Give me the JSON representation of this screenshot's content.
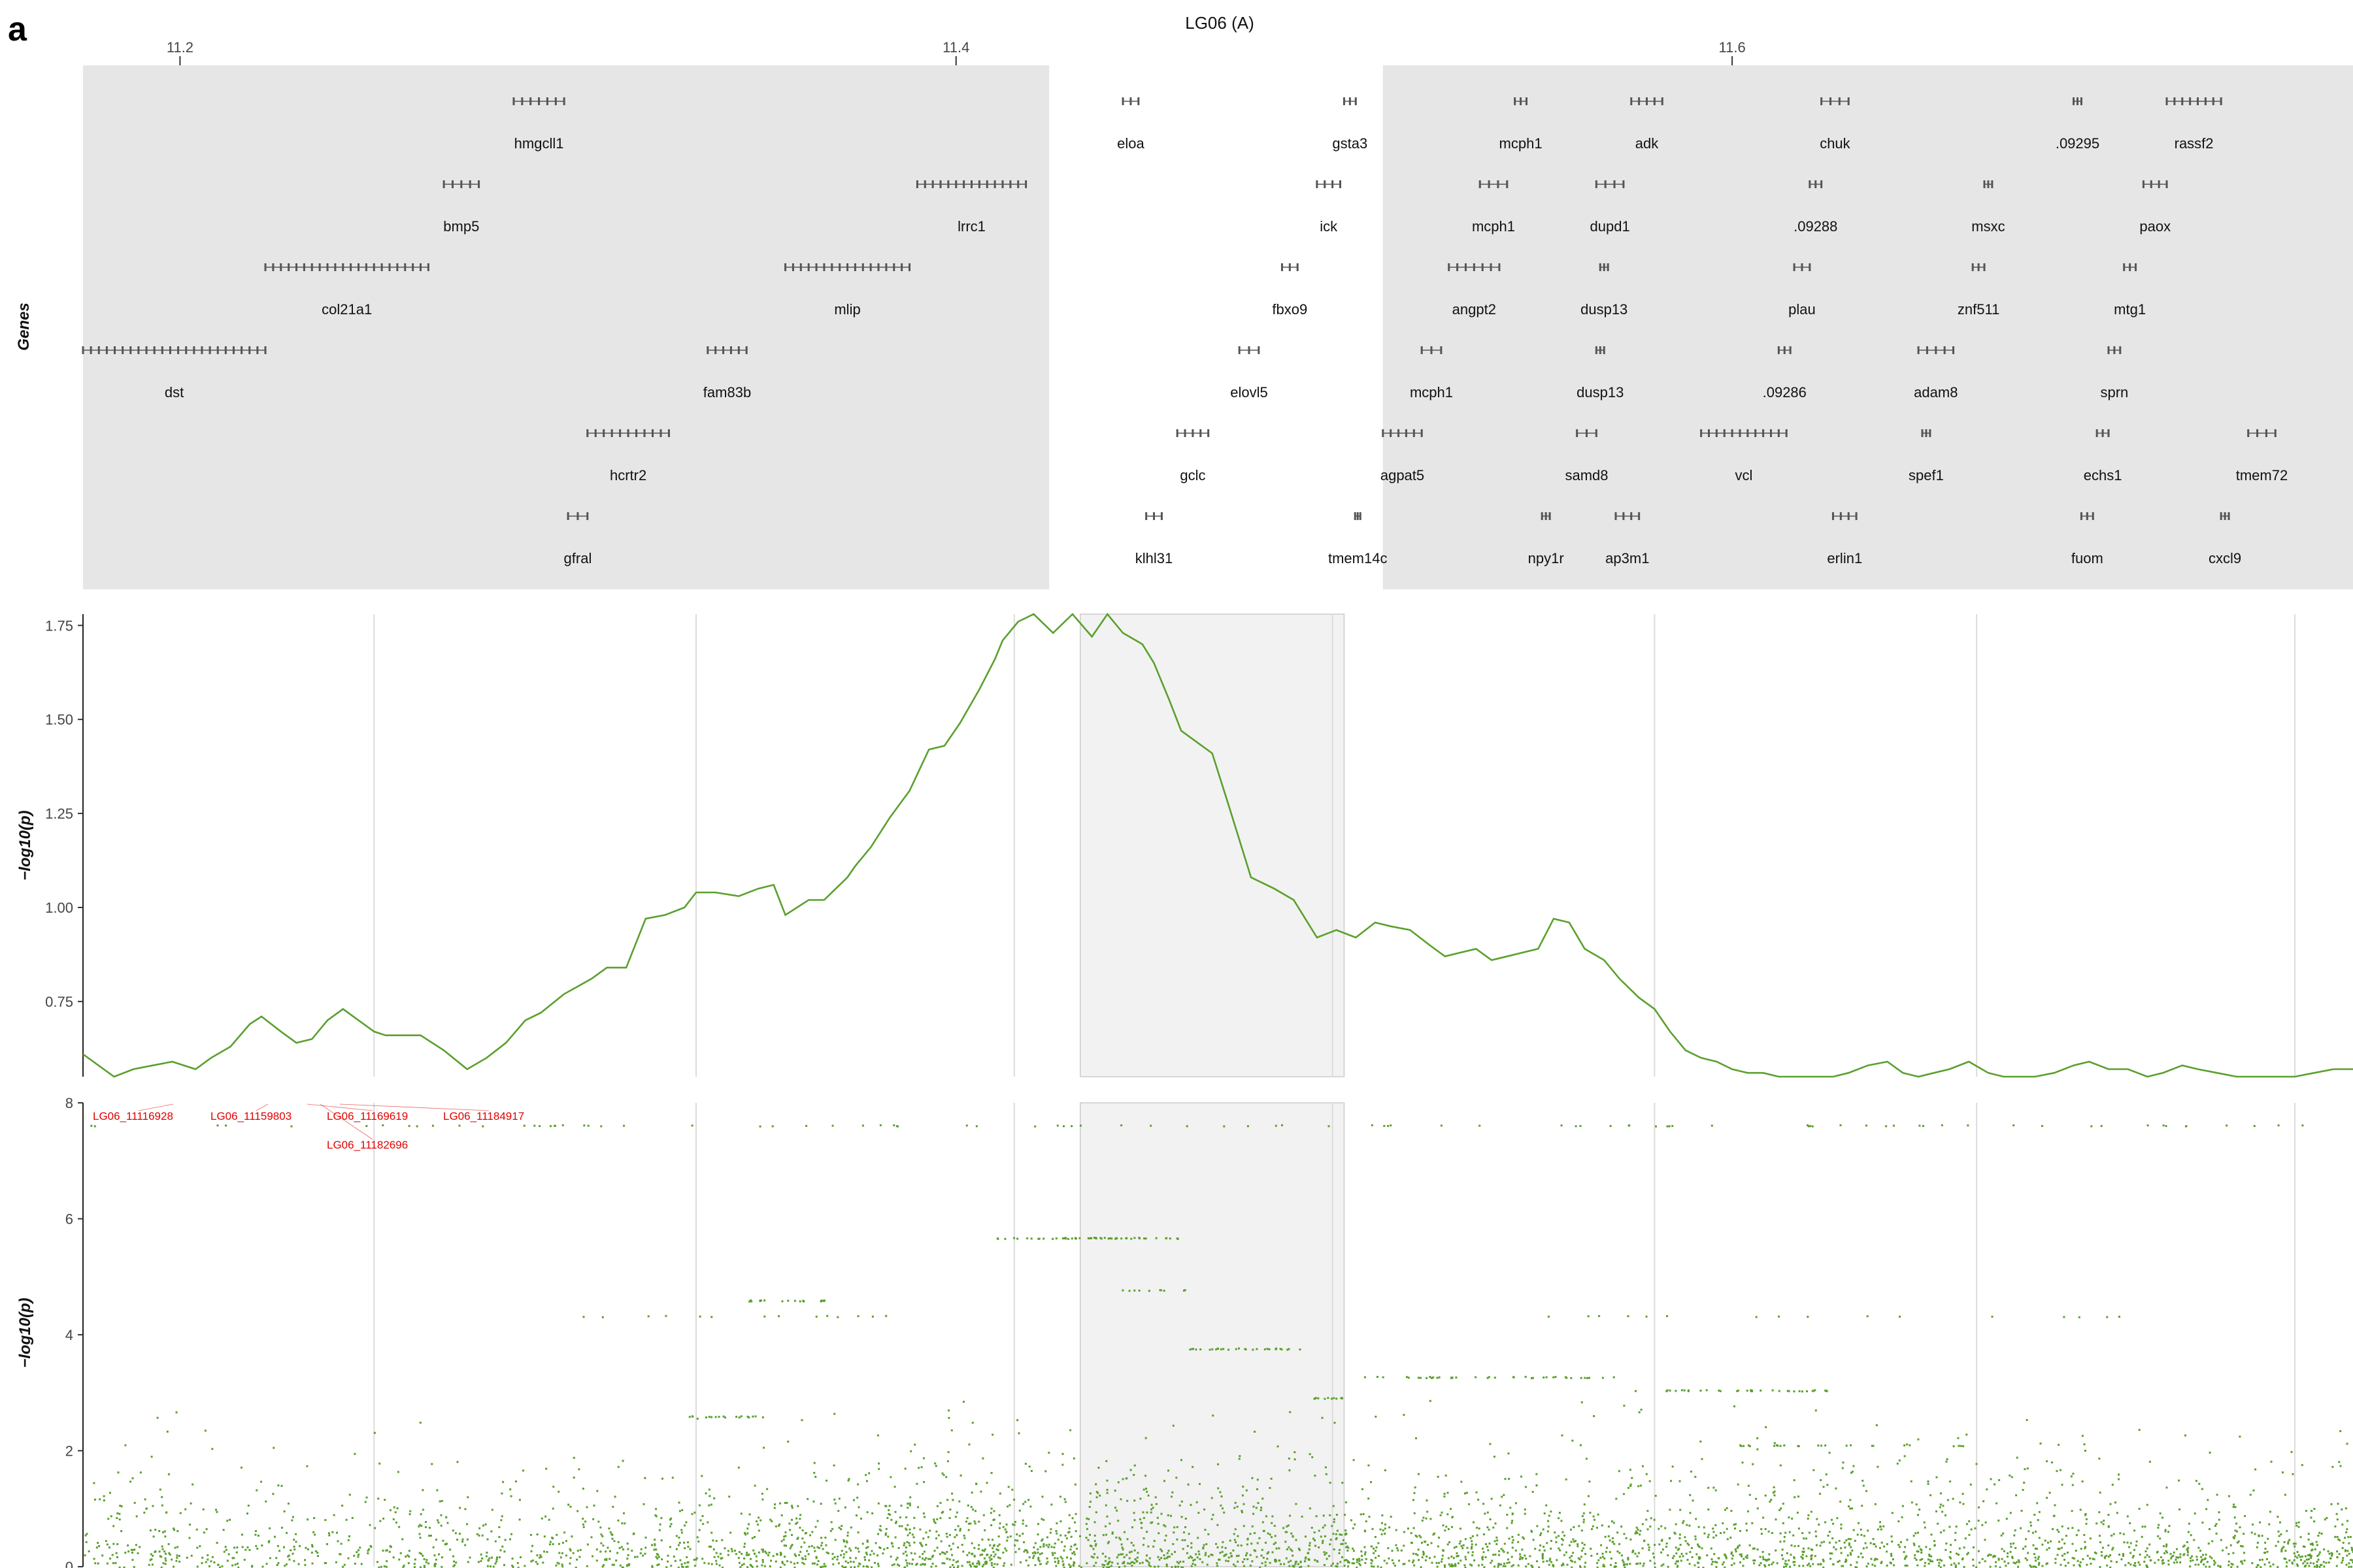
{
  "panel_letter": "a",
  "colors": {
    "line": "#5aa02c",
    "points": "#5aa02c",
    "gene_panel_bg": "#e6e6e6",
    "highlight": "#f2f2f2",
    "snp_label": "#e00000",
    "gene_stroke": "#555555"
  },
  "chart_data": [
    {
      "type": "gene_track",
      "title": "LG06 (A)",
      "ylabel": "Genes",
      "x_ticks": [
        "11.2",
        "11.4",
        "11.6"
      ],
      "x_tick_values": [
        11.2,
        11.4,
        11.6
      ],
      "xlim": [
        11.175,
        11.76
      ],
      "unshaded_interval": [
        11.424,
        11.51
      ],
      "genes": [
        {
          "name": "hmgcll1",
          "start": 11.286,
          "end": 11.299,
          "row": 1
        },
        {
          "name": "eloa",
          "start": 11.443,
          "end": 11.447,
          "row": 1
        },
        {
          "name": "gsta3",
          "start": 11.5,
          "end": 11.503,
          "row": 1
        },
        {
          "name": "mcph1",
          "start": 11.544,
          "end": 11.547,
          "row": 1
        },
        {
          "name": "adk",
          "start": 11.574,
          "end": 11.582,
          "row": 1
        },
        {
          "name": "chuk",
          "start": 11.623,
          "end": 11.63,
          "row": 1
        },
        {
          "name": ".09295",
          "start": 11.688,
          "end": 11.69,
          "row": 1
        },
        {
          "name": "rassf2",
          "start": 11.712,
          "end": 11.726,
          "row": 1
        },
        {
          "name": "bmp5",
          "start": 11.268,
          "end": 11.277,
          "row": 2
        },
        {
          "name": "lrrc1",
          "start": 11.39,
          "end": 11.418,
          "row": 2
        },
        {
          "name": "ick",
          "start": 11.493,
          "end": 11.499,
          "row": 2
        },
        {
          "name": "mcph1",
          "start": 11.535,
          "end": 11.542,
          "row": 2
        },
        {
          "name": "dupd1",
          "start": 11.565,
          "end": 11.572,
          "row": 2
        },
        {
          "name": ".09288",
          "start": 11.62,
          "end": 11.623,
          "row": 2
        },
        {
          "name": "msxc",
          "start": 11.665,
          "end": 11.667,
          "row": 2
        },
        {
          "name": "paox",
          "start": 11.706,
          "end": 11.712,
          "row": 2
        },
        {
          "name": "col21a1",
          "start": 11.222,
          "end": 11.264,
          "row": 3
        },
        {
          "name": "mlip",
          "start": 11.356,
          "end": 11.388,
          "row": 3
        },
        {
          "name": "fbxo9",
          "start": 11.484,
          "end": 11.488,
          "row": 3
        },
        {
          "name": "angpt2",
          "start": 11.527,
          "end": 11.54,
          "row": 3
        },
        {
          "name": "dusp13",
          "start": 11.566,
          "end": 11.568,
          "row": 3
        },
        {
          "name": "plau",
          "start": 11.616,
          "end": 11.62,
          "row": 3
        },
        {
          "name": "znf511",
          "start": 11.662,
          "end": 11.665,
          "row": 3
        },
        {
          "name": "mtg1",
          "start": 11.701,
          "end": 11.704,
          "row": 3
        },
        {
          "name": "dst",
          "start": 11.175,
          "end": 11.222,
          "row": 4
        },
        {
          "name": "fam83b",
          "start": 11.336,
          "end": 11.346,
          "row": 4
        },
        {
          "name": "elovl5",
          "start": 11.473,
          "end": 11.478,
          "row": 4
        },
        {
          "name": "mcph1",
          "start": 11.52,
          "end": 11.525,
          "row": 4
        },
        {
          "name": "dusp13",
          "start": 11.565,
          "end": 11.567,
          "row": 4
        },
        {
          "name": ".09286",
          "start": 11.612,
          "end": 11.615,
          "row": 4
        },
        {
          "name": "adam8",
          "start": 11.648,
          "end": 11.657,
          "row": 4
        },
        {
          "name": "sprn",
          "start": 11.697,
          "end": 11.7,
          "row": 4
        },
        {
          "name": "hcrtr2",
          "start": 11.305,
          "end": 11.326,
          "row": 5
        },
        {
          "name": "gclc",
          "start": 11.457,
          "end": 11.465,
          "row": 5
        },
        {
          "name": "agpat5",
          "start": 11.51,
          "end": 11.52,
          "row": 5
        },
        {
          "name": "samd8",
          "start": 11.56,
          "end": 11.565,
          "row": 5
        },
        {
          "name": "vcl",
          "start": 11.592,
          "end": 11.614,
          "row": 5
        },
        {
          "name": "spef1",
          "start": 11.649,
          "end": 11.651,
          "row": 5
        },
        {
          "name": "echs1",
          "start": 11.694,
          "end": 11.697,
          "row": 5
        },
        {
          "name": "tmem72",
          "start": 11.733,
          "end": 11.74,
          "row": 5
        },
        {
          "name": "gfral",
          "start": 11.3,
          "end": 11.305,
          "row": 6
        },
        {
          "name": "klhl31",
          "start": 11.449,
          "end": 11.453,
          "row": 6
        },
        {
          "name": "tmem14c",
          "start": 11.503,
          "end": 11.504,
          "row": 6
        },
        {
          "name": "npy1r",
          "start": 11.551,
          "end": 11.553,
          "row": 6
        },
        {
          "name": "ap3m1",
          "start": 11.57,
          "end": 11.576,
          "row": 6
        },
        {
          "name": "erlin1",
          "start": 11.626,
          "end": 11.632,
          "row": 6
        },
        {
          "name": "fuom",
          "start": 11.69,
          "end": 11.693,
          "row": 6
        },
        {
          "name": "cxcl9",
          "start": 11.726,
          "end": 11.728,
          "row": 6
        }
      ]
    },
    {
      "type": "line",
      "ylabel": "−log10(p)",
      "ylim": [
        0.55,
        1.78
      ],
      "y_ticks": [
        0.75,
        1.0,
        1.25,
        1.5,
        1.75
      ],
      "y_tick_labels": [
        "0.75",
        "1.00",
        "1.25",
        "1.50",
        "1.75"
      ],
      "xlim": [
        11.175,
        11.76
      ],
      "highlight_interval": [
        11.432,
        11.5
      ],
      "series": [
        {
          "x": [
            11.175,
            11.183,
            11.188,
            11.193,
            11.198,
            11.204,
            11.208,
            11.213,
            11.218,
            11.221,
            11.226,
            11.23,
            11.234,
            11.238,
            11.242,
            11.246,
            11.25,
            11.253,
            11.257,
            11.262,
            11.268,
            11.274,
            11.279,
            11.284,
            11.289,
            11.293,
            11.299,
            11.306,
            11.31,
            11.315,
            11.32,
            11.325,
            11.33,
            11.333,
            11.338,
            11.344,
            11.349,
            11.353,
            11.356,
            11.362,
            11.366,
            11.369,
            11.372,
            11.374,
            11.378,
            11.383,
            11.388,
            11.393,
            11.397,
            11.401,
            11.406,
            11.41,
            11.412,
            11.416,
            11.42,
            11.425,
            11.43,
            11.435,
            11.439,
            11.443,
            11.448,
            11.451,
            11.455,
            11.458,
            11.462,
            11.466,
            11.47,
            11.476,
            11.482,
            11.487,
            11.493,
            11.498,
            11.503,
            11.508,
            11.512,
            11.517,
            11.522,
            11.526,
            11.53,
            11.534,
            11.538,
            11.542,
            11.546,
            11.55,
            11.554,
            11.558,
            11.562,
            11.567,
            11.571,
            11.576,
            11.58,
            11.584,
            11.588,
            11.592,
            11.596,
            11.6,
            11.604,
            11.608,
            11.612,
            11.617,
            11.622,
            11.626,
            11.63,
            11.635,
            11.64,
            11.644,
            11.648,
            11.652,
            11.656,
            11.661,
            11.666,
            11.67,
            11.674,
            11.678,
            11.683,
            11.688,
            11.692,
            11.697,
            11.702,
            11.707,
            11.711,
            11.716,
            11.72,
            11.725,
            11.73,
            11.735,
            11.74,
            11.745,
            11.75,
            11.755,
            11.76
          ],
          "y": [
            0.61,
            0.55,
            0.57,
            0.58,
            0.59,
            0.57,
            0.6,
            0.63,
            0.69,
            0.71,
            0.67,
            0.64,
            0.65,
            0.7,
            0.73,
            0.7,
            0.67,
            0.66,
            0.66,
            0.66,
            0.62,
            0.57,
            0.6,
            0.64,
            0.7,
            0.72,
            0.77,
            0.81,
            0.84,
            0.84,
            0.97,
            0.98,
            1.0,
            1.04,
            1.04,
            1.03,
            1.05,
            1.06,
            0.98,
            1.02,
            1.02,
            1.05,
            1.08,
            1.11,
            1.16,
            1.24,
            1.31,
            1.42,
            1.43,
            1.49,
            1.58,
            1.66,
            1.71,
            1.76,
            1.78,
            1.73,
            1.78,
            1.72,
            1.78,
            1.73,
            1.7,
            1.65,
            1.55,
            1.47,
            1.44,
            1.41,
            1.28,
            1.08,
            1.05,
            1.02,
            0.92,
            0.94,
            0.92,
            0.96,
            0.95,
            0.94,
            0.9,
            0.87,
            0.88,
            0.89,
            0.86,
            0.87,
            0.88,
            0.89,
            0.97,
            0.96,
            0.89,
            0.86,
            0.81,
            0.76,
            0.73,
            0.67,
            0.62,
            0.6,
            0.59,
            0.57,
            0.56,
            0.56,
            0.55,
            0.55,
            0.55,
            0.55,
            0.56,
            0.58,
            0.59,
            0.56,
            0.55,
            0.56,
            0.57,
            0.59,
            0.56,
            0.55,
            0.55,
            0.55,
            0.56,
            0.58,
            0.59,
            0.57,
            0.57,
            0.55,
            0.56,
            0.58,
            0.57,
            0.56,
            0.55,
            0.55,
            0.55,
            0.55,
            0.56,
            0.57,
            0.57
          ]
        }
      ]
    },
    {
      "type": "scatter",
      "ylabel": "−log10(p)",
      "ylim": [
        0,
        8
      ],
      "y_ticks": [
        0,
        2,
        4,
        6,
        8
      ],
      "y_tick_labels": [
        "0",
        "2",
        "4",
        "6",
        "8"
      ],
      "xlim": [
        11.175,
        11.76
      ],
      "highlight_interval": [
        11.432,
        11.5
      ],
      "annotations": [
        {
          "label": "LG06_11116928"
        },
        {
          "label": "LG06_11159803"
        },
        {
          "label": "LG06_11169619"
        },
        {
          "label": "LG06_11184917"
        },
        {
          "label": "LG06_11182696"
        }
      ],
      "density_profile": [
        {
          "x": 11.175,
          "n": 130,
          "ymax": 2.7
        },
        {
          "x": 11.205,
          "n": 110,
          "ymax": 2.5
        },
        {
          "x": 11.235,
          "n": 110,
          "ymax": 2.5
        },
        {
          "x": 11.265,
          "n": 120,
          "ymax": 2.4
        },
        {
          "x": 11.295,
          "n": 140,
          "ymax": 2.8
        },
        {
          "x": 11.325,
          "n": 170,
          "ymax": 3.5
        },
        {
          "x": 11.355,
          "n": 220,
          "ymax": 4.6
        },
        {
          "x": 11.385,
          "n": 240,
          "ymax": 7.0
        },
        {
          "x": 11.41,
          "n": 230,
          "ymax": 5.7
        },
        {
          "x": 11.44,
          "n": 220,
          "ymax": 5.7
        },
        {
          "x": 11.47,
          "n": 220,
          "ymax": 4.2
        },
        {
          "x": 11.5,
          "n": 200,
          "ymax": 3.4
        },
        {
          "x": 11.53,
          "n": 210,
          "ymax": 3.8
        },
        {
          "x": 11.56,
          "n": 200,
          "ymax": 3.3
        },
        {
          "x": 11.59,
          "n": 200,
          "ymax": 3.2
        },
        {
          "x": 11.62,
          "n": 190,
          "ymax": 3.0
        },
        {
          "x": 11.65,
          "n": 180,
          "ymax": 2.7
        },
        {
          "x": 11.68,
          "n": 170,
          "ymax": 3.4
        },
        {
          "x": 11.71,
          "n": 170,
          "ymax": 4.9
        },
        {
          "x": 11.74,
          "n": 160,
          "ymax": 2.8
        },
        {
          "x": 11.76,
          "n": 140,
          "ymax": 2.5
        }
      ],
      "clusters": [
        {
          "y": 7.62,
          "x0": 11.175,
          "x1": 11.76,
          "n": 90
        },
        {
          "y": 5.68,
          "x0": 11.41,
          "x1": 11.457,
          "n": 55
        },
        {
          "y": 4.6,
          "x0": 11.346,
          "x1": 11.366,
          "n": 20
        },
        {
          "y": 4.78,
          "x0": 11.442,
          "x1": 11.46,
          "n": 10
        },
        {
          "y": 3.77,
          "x0": 11.46,
          "x1": 11.49,
          "n": 30
        },
        {
          "y": 3.28,
          "x0": 11.505,
          "x1": 11.57,
          "n": 40
        },
        {
          "y": 3.05,
          "x0": 11.572,
          "x1": 11.625,
          "n": 35
        },
        {
          "y": 2.92,
          "x0": 11.49,
          "x1": 11.5,
          "n": 12
        },
        {
          "y": 2.6,
          "x0": 11.33,
          "x1": 11.35,
          "n": 18
        },
        {
          "y": 2.1,
          "x0": 11.6,
          "x1": 11.66,
          "n": 25
        },
        {
          "y": 4.33,
          "x0": 11.3,
          "x1": 11.39,
          "n": 14
        },
        {
          "y": 4.33,
          "x0": 11.55,
          "x1": 11.7,
          "n": 16
        }
      ]
    }
  ]
}
